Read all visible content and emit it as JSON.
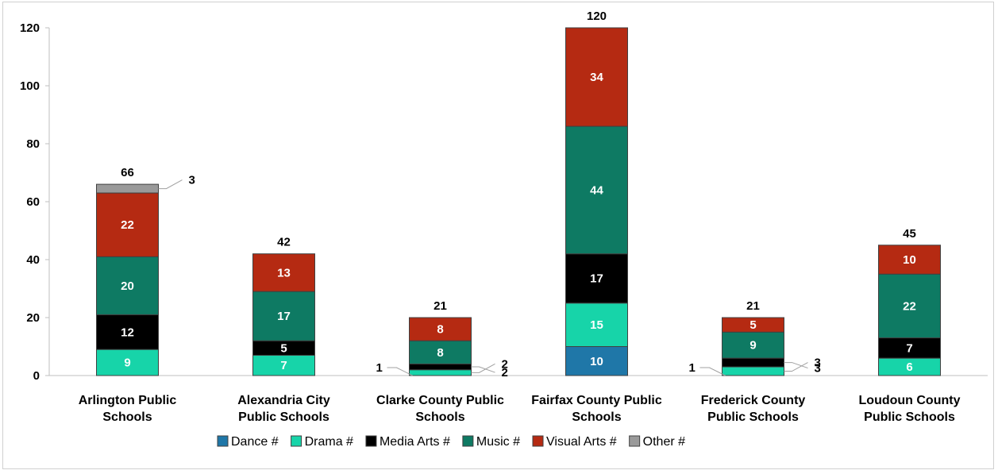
{
  "chart_data": {
    "type": "bar",
    "stacked": true,
    "categories": [
      [
        "Arlington Public",
        "Schools"
      ],
      [
        "Alexandria City",
        "Public Schools"
      ],
      [
        "Clarke County Public",
        "Schools"
      ],
      [
        "Fairfax County Public",
        "Schools"
      ],
      [
        "Frederick County",
        "Public Schools"
      ],
      [
        "Loudoun County",
        "Public Schools"
      ]
    ],
    "series": [
      {
        "name": "Dance #",
        "color": "#1f77a8",
        "values": [
          0,
          0,
          0,
          10,
          0,
          0
        ]
      },
      {
        "name": "Drama #",
        "color": "#17d4a9",
        "values": [
          9,
          7,
          2,
          15,
          3,
          6
        ]
      },
      {
        "name": "Media Arts #",
        "color": "#000000",
        "values": [
          12,
          5,
          2,
          17,
          3,
          7
        ]
      },
      {
        "name": "Music #",
        "color": "#0e7a63",
        "values": [
          20,
          17,
          8,
          44,
          9,
          22
        ]
      },
      {
        "name": "Visual Arts #",
        "color": "#b52a12",
        "values": [
          22,
          13,
          8,
          34,
          5,
          10
        ]
      },
      {
        "name": "Other #",
        "color": "#9a9a9a",
        "values": [
          3,
          0,
          0,
          0,
          0,
          0
        ]
      }
    ],
    "unplotted_labels": [
      {
        "category_index": 2,
        "text": "1"
      },
      {
        "category_index": 4,
        "text": "1"
      }
    ],
    "totals": [
      66,
      42,
      21,
      120,
      21,
      45
    ],
    "ylim": [
      0,
      120
    ],
    "yticks": [
      0,
      20,
      40,
      60,
      80,
      100,
      120
    ],
    "legend_position": "bottom",
    "grid": false
  }
}
